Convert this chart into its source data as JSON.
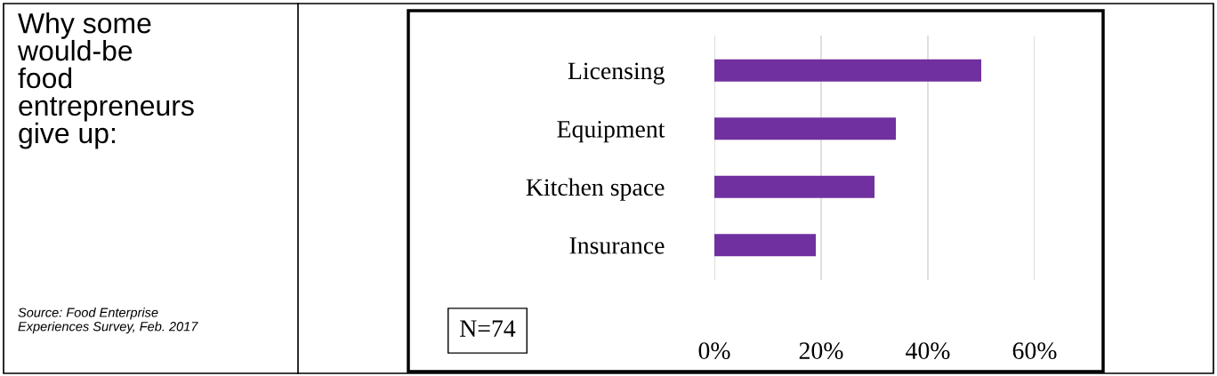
{
  "chart_data": {
    "type": "bar",
    "orientation": "horizontal",
    "title": "Why some\nwould-be\nfood\nentrepreneurs\ngive up:",
    "categories": [
      "Licensing",
      "Equipment",
      "Kitchen space",
      "Insurance"
    ],
    "values": [
      50,
      34,
      30,
      19
    ],
    "color": "#7030a0",
    "xlim": [
      0,
      60
    ],
    "xticks": [
      {
        "value": 0,
        "label": "0%"
      },
      {
        "value": 20,
        "label": "20%"
      },
      {
        "value": 40,
        "label": "40%"
      },
      {
        "value": 60,
        "label": "60%"
      }
    ],
    "grid": "x",
    "annotations": [
      "Source: Food Enterprise\nExperiences Survey, Feb. 2017",
      "N=74"
    ]
  }
}
